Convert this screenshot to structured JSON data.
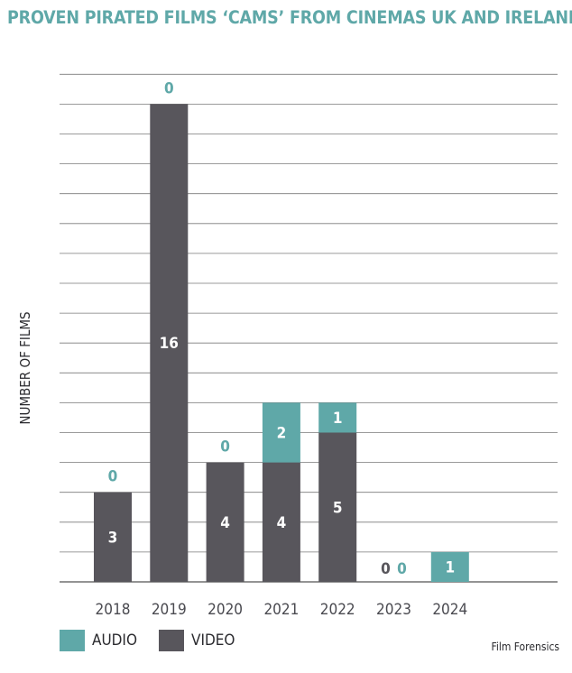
{
  "chart_data": {
    "type": "bar",
    "stacked": true,
    "title": "PROVEN PIRATED FILMS ‘CAMS’ FROM CINEMAS UK AND IRELAND",
    "xlabel": "",
    "ylabel": "NUMBER OF FILMS",
    "categories": [
      "2018",
      "2019",
      "2020",
      "2021",
      "2022",
      "2023",
      "2024"
    ],
    "series": [
      {
        "name": "VIDEO",
        "color": "#58565c",
        "values": [
          3,
          16,
          4,
          4,
          5,
          0,
          0
        ]
      },
      {
        "name": "AUDIO",
        "color": "#5fa8a8",
        "values": [
          0,
          0,
          0,
          2,
          1,
          0,
          1
        ]
      }
    ],
    "ylim": [
      0,
      17
    ],
    "grid": true,
    "legend": "bottom-left",
    "source": "Film Forensics"
  }
}
